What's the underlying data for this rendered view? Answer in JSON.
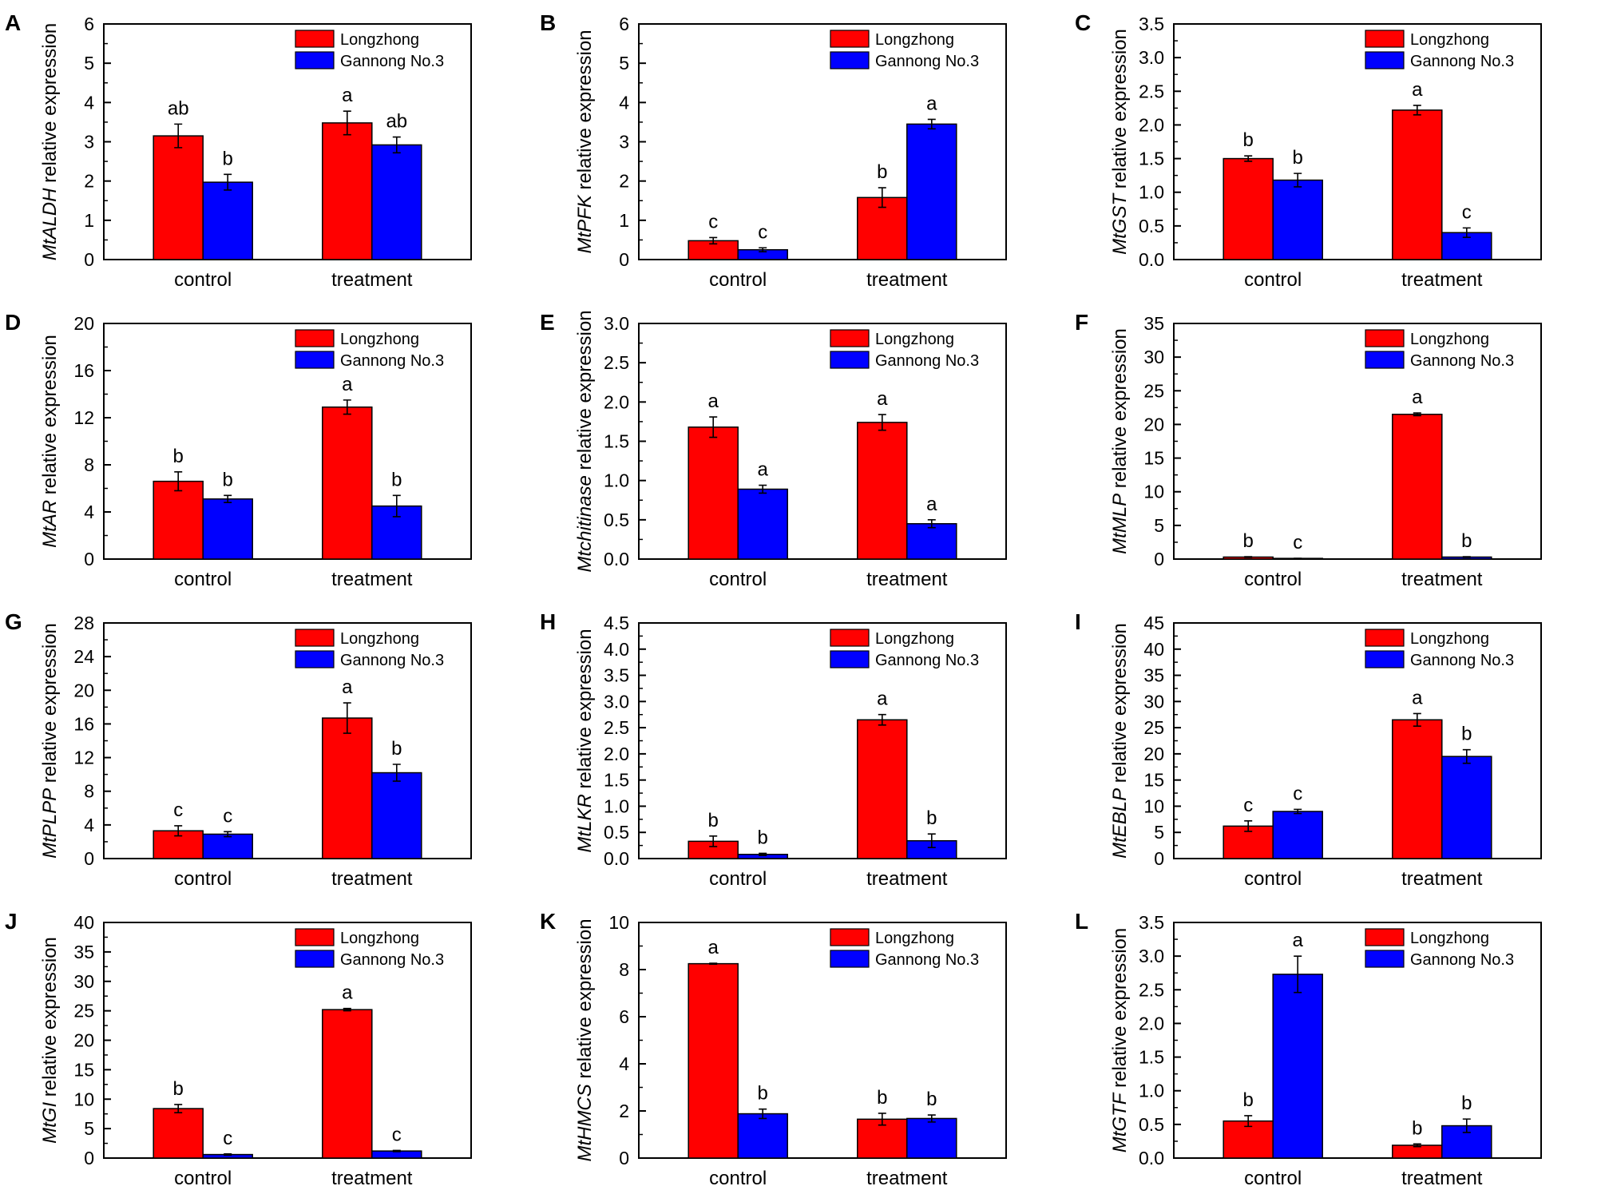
{
  "colors": {
    "longzhong": "#ff0000",
    "gannong": "#0000ff",
    "axis": "#000000"
  },
  "chart_data": [
    {
      "type": "bar",
      "panel": "A",
      "gene": "MtALDH",
      "ylabel_suffix": " relative expression",
      "categories": [
        "control",
        "treatment"
      ],
      "ylim": [
        0,
        6
      ],
      "yticks": [
        0,
        1,
        2,
        3,
        4,
        5,
        6
      ],
      "tick_labels": [
        "0",
        "1",
        "2",
        "3",
        "4",
        "5",
        "6"
      ],
      "legend": [
        "Longzhong",
        "Gannong No.3"
      ],
      "legend_position": "top-right",
      "series": [
        {
          "name": "Longzhong",
          "values": [
            3.15,
            3.48
          ],
          "errors": [
            0.3,
            0.3
          ],
          "letters": [
            "ab",
            "a"
          ]
        },
        {
          "name": "Gannong No.3",
          "values": [
            1.97,
            2.92
          ],
          "errors": [
            0.2,
            0.2
          ],
          "letters": [
            "b",
            "ab"
          ]
        }
      ]
    },
    {
      "type": "bar",
      "panel": "B",
      "gene": "MtPFK",
      "ylabel_suffix": " relative expression",
      "categories": [
        "control",
        "treatment"
      ],
      "ylim": [
        0,
        6
      ],
      "yticks": [
        0,
        1,
        2,
        3,
        4,
        5,
        6
      ],
      "tick_labels": [
        "0",
        "1",
        "2",
        "3",
        "4",
        "5",
        "6"
      ],
      "legend": [
        "Longzhong",
        "Gannong No.3"
      ],
      "legend_position": "top-right",
      "series": [
        {
          "name": "Longzhong",
          "values": [
            0.48,
            1.58
          ],
          "errors": [
            0.08,
            0.25
          ],
          "letters": [
            "c",
            "b"
          ]
        },
        {
          "name": "Gannong No.3",
          "values": [
            0.25,
            3.45
          ],
          "errors": [
            0.05,
            0.12
          ],
          "letters": [
            "c",
            "a"
          ]
        }
      ]
    },
    {
      "type": "bar",
      "panel": "C",
      "gene": "MtGST",
      "ylabel_suffix": " relative expression",
      "categories": [
        "control",
        "treatment"
      ],
      "ylim": [
        0,
        3.5
      ],
      "yticks": [
        0,
        0.5,
        1,
        1.5,
        2,
        2.5,
        3,
        3.5
      ],
      "tick_labels": [
        "0.0",
        "0.5",
        "1.0",
        "1.5",
        "2.0",
        "2.5",
        "3.0",
        "3.5"
      ],
      "legend": [
        "Longzhong",
        "Gannong No.3"
      ],
      "legend_position": "top-right",
      "series": [
        {
          "name": "Longzhong",
          "values": [
            1.5,
            2.22
          ],
          "errors": [
            0.04,
            0.07
          ],
          "letters": [
            "b",
            "a"
          ]
        },
        {
          "name": "Gannong No.3",
          "values": [
            1.18,
            0.4
          ],
          "errors": [
            0.1,
            0.07
          ],
          "letters": [
            "b",
            "c"
          ]
        }
      ]
    },
    {
      "type": "bar",
      "panel": "D",
      "gene": "MtAR",
      "ylabel_suffix": " relative expression",
      "categories": [
        "control",
        "treatment"
      ],
      "ylim": [
        0,
        20
      ],
      "yticks": [
        0,
        4,
        8,
        12,
        16,
        20
      ],
      "tick_labels": [
        "0",
        "4",
        "8",
        "12",
        "16",
        "20"
      ],
      "legend": [
        "Longzhong",
        "Gannong No.3"
      ],
      "legend_position": "top-right",
      "series": [
        {
          "name": "Longzhong",
          "values": [
            6.6,
            12.9
          ],
          "errors": [
            0.8,
            0.6
          ],
          "letters": [
            "b",
            "a"
          ]
        },
        {
          "name": "Gannong No.3",
          "values": [
            5.1,
            4.5
          ],
          "errors": [
            0.3,
            0.9
          ],
          "letters": [
            "b",
            "b"
          ]
        }
      ]
    },
    {
      "type": "bar",
      "panel": "E",
      "gene": "Mtchitinase",
      "ylabel_suffix": " relative expression",
      "categories": [
        "control",
        "treatment"
      ],
      "ylim": [
        0,
        3
      ],
      "yticks": [
        0,
        0.5,
        1,
        1.5,
        2,
        2.5,
        3
      ],
      "tick_labels": [
        "0.0",
        "0.5",
        "1.0",
        "1.5",
        "2.0",
        "2.5",
        "3.0"
      ],
      "legend": [
        "Longzhong",
        "Gannong No.3"
      ],
      "legend_position": "top-right",
      "series": [
        {
          "name": "Longzhong",
          "values": [
            1.68,
            1.74
          ],
          "errors": [
            0.13,
            0.1
          ],
          "letters": [
            "a",
            "a"
          ]
        },
        {
          "name": "Gannong No.3",
          "values": [
            0.89,
            0.45
          ],
          "errors": [
            0.05,
            0.05
          ],
          "letters": [
            "a",
            "a"
          ]
        }
      ]
    },
    {
      "type": "bar",
      "panel": "F",
      "gene": "MtMLP",
      "ylabel_suffix": " relative expression",
      "categories": [
        "control",
        "treatment"
      ],
      "ylim": [
        0,
        35
      ],
      "yticks": [
        0,
        5,
        10,
        15,
        20,
        25,
        30,
        35
      ],
      "tick_labels": [
        "0",
        "5",
        "10",
        "15",
        "20",
        "25",
        "30",
        "35"
      ],
      "legend": [
        "Longzhong",
        "Gannong No.3"
      ],
      "legend_position": "top-right",
      "series": [
        {
          "name": "Longzhong",
          "values": [
            0.3,
            21.5
          ],
          "errors": [
            0.05,
            0.2
          ],
          "letters": [
            "b",
            "a"
          ]
        },
        {
          "name": "Gannong No.3",
          "values": [
            0.1,
            0.3
          ],
          "errors": [
            0.02,
            0.05
          ],
          "letters": [
            "c",
            "b"
          ]
        }
      ]
    },
    {
      "type": "bar",
      "panel": "G",
      "gene": "MtPLPP",
      "ylabel_suffix": " relative expression",
      "categories": [
        "control",
        "treatment"
      ],
      "ylim": [
        0,
        28
      ],
      "yticks": [
        0,
        4,
        8,
        12,
        16,
        20,
        24,
        28
      ],
      "tick_labels": [
        "0",
        "4",
        "8",
        "12",
        "16",
        "20",
        "24",
        "28"
      ],
      "legend": [
        "Longzhong",
        "Gannong No.3"
      ],
      "legend_position": "top-right",
      "series": [
        {
          "name": "Longzhong",
          "values": [
            3.3,
            16.7
          ],
          "errors": [
            0.6,
            1.8
          ],
          "letters": [
            "c",
            "a"
          ]
        },
        {
          "name": "Gannong No.3",
          "values": [
            2.9,
            10.2
          ],
          "errors": [
            0.3,
            1.0
          ],
          "letters": [
            "c",
            "b"
          ]
        }
      ]
    },
    {
      "type": "bar",
      "panel": "H",
      "gene": "MtLKR",
      "ylabel_suffix": " relative expression",
      "categories": [
        "control",
        "treatment"
      ],
      "ylim": [
        0,
        4.5
      ],
      "yticks": [
        0,
        0.5,
        1,
        1.5,
        2,
        2.5,
        3,
        3.5,
        4,
        4.5
      ],
      "tick_labels": [
        "0.0",
        "0.5",
        "1.0",
        "1.5",
        "2.0",
        "2.5",
        "3.0",
        "3.5",
        "4.0",
        "4.5"
      ],
      "legend": [
        "Longzhong",
        "Gannong No.3"
      ],
      "legend_position": "top-right",
      "series": [
        {
          "name": "Longzhong",
          "values": [
            0.33,
            2.65
          ],
          "errors": [
            0.1,
            0.1
          ],
          "letters": [
            "b",
            "a"
          ]
        },
        {
          "name": "Gannong No.3",
          "values": [
            0.08,
            0.34
          ],
          "errors": [
            0.02,
            0.13
          ],
          "letters": [
            "b",
            "b"
          ]
        }
      ]
    },
    {
      "type": "bar",
      "panel": "I",
      "gene": "MtEBLP",
      "ylabel_suffix": " relative expression",
      "categories": [
        "control",
        "treatment"
      ],
      "ylim": [
        0,
        45
      ],
      "yticks": [
        0,
        5,
        10,
        15,
        20,
        25,
        30,
        35,
        40,
        45
      ],
      "tick_labels": [
        "0",
        "5",
        "10",
        "15",
        "20",
        "25",
        "30",
        "35",
        "40",
        "45"
      ],
      "legend": [
        "Longzhong",
        "Gannong No.3"
      ],
      "legend_position": "top-right",
      "series": [
        {
          "name": "Longzhong",
          "values": [
            6.2,
            26.5
          ],
          "errors": [
            1.0,
            1.2
          ],
          "letters": [
            "c",
            "a"
          ]
        },
        {
          "name": "Gannong No.3",
          "values": [
            9.0,
            19.5
          ],
          "errors": [
            0.4,
            1.3
          ],
          "letters": [
            "c",
            "b"
          ]
        }
      ]
    },
    {
      "type": "bar",
      "panel": "J",
      "gene": "MtGI",
      "ylabel_suffix": "  relative expression",
      "categories": [
        "control",
        "treatment"
      ],
      "ylim": [
        0,
        40
      ],
      "yticks": [
        0,
        5,
        10,
        15,
        20,
        25,
        30,
        35,
        40
      ],
      "tick_labels": [
        "0",
        "5",
        "10",
        "15",
        "20",
        "25",
        "30",
        "35",
        "40"
      ],
      "legend": [
        "Longzhong",
        "Gannong No.3"
      ],
      "legend_position": "top-right",
      "series": [
        {
          "name": "Longzhong",
          "values": [
            8.4,
            25.2
          ],
          "errors": [
            0.7,
            0.2
          ],
          "letters": [
            "b",
            "a"
          ]
        },
        {
          "name": "Gannong No.3",
          "values": [
            0.6,
            1.2
          ],
          "errors": [
            0.1,
            0.1
          ],
          "letters": [
            "c",
            "c"
          ]
        }
      ]
    },
    {
      "type": "bar",
      "panel": "K",
      "gene": "MtHMCS",
      "ylabel_suffix": " relative expression",
      "categories": [
        "control",
        "treatment"
      ],
      "ylim": [
        0,
        10
      ],
      "yticks": [
        0,
        2,
        4,
        6,
        8,
        10
      ],
      "tick_labels": [
        "0",
        "2",
        "4",
        "6",
        "8",
        "10"
      ],
      "legend": [
        "Longzhong",
        "Gannong No.3"
      ],
      "legend_position": "top-right",
      "series": [
        {
          "name": "Longzhong",
          "values": [
            8.25,
            1.65
          ],
          "errors": [
            0.02,
            0.25
          ],
          "letters": [
            "a",
            "b"
          ]
        },
        {
          "name": "Gannong No.3",
          "values": [
            1.88,
            1.68
          ],
          "errors": [
            0.2,
            0.15
          ],
          "letters": [
            "b",
            "b"
          ]
        }
      ]
    },
    {
      "type": "bar",
      "panel": "L",
      "gene": "MtGTF",
      "ylabel_suffix": " relative expression",
      "categories": [
        "control",
        "treatment"
      ],
      "ylim": [
        0,
        3.5
      ],
      "yticks": [
        0,
        0.5,
        1,
        1.5,
        2,
        2.5,
        3,
        3.5
      ],
      "tick_labels": [
        "0.0",
        "0.5",
        "1.0",
        "1.5",
        "2.0",
        "2.5",
        "3.0",
        "3.5"
      ],
      "legend": [
        "Longzhong",
        "Gannong No.3"
      ],
      "legend_position": "top-right",
      "series": [
        {
          "name": "Longzhong",
          "values": [
            0.55,
            0.19
          ],
          "errors": [
            0.08,
            0.02
          ],
          "letters": [
            "b",
            "b"
          ]
        },
        {
          "name": "Gannong No.3",
          "values": [
            2.73,
            0.48
          ],
          "errors": [
            0.27,
            0.1
          ],
          "letters": [
            "a",
            "b"
          ]
        }
      ]
    }
  ]
}
